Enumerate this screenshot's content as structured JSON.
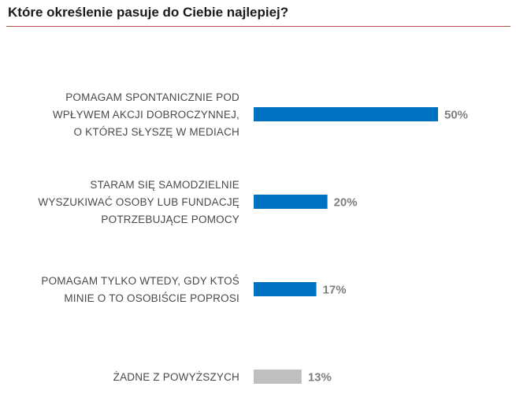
{
  "chart_data": {
    "type": "bar",
    "orientation": "horizontal",
    "title": "Które określenie pasuje do Ciebie najlepiej?",
    "categories": [
      [
        "POMAGAM SPONTANICZNIE POD",
        "WPŁYWEM AKCJI DOBROCZYNNEJ,",
        "O KTÓREJ SŁYSZĘ W MEDIACH"
      ],
      [
        "STARAM SIĘ SAMODZIELNIE",
        "WYSZUKIWAĆ OSOBY LUB FUNDACJĘ",
        "POTRZEBUJĄCE POMOCY"
      ],
      [
        "POMAGAM TYLKO WTEDY, GDY KTOŚ",
        "MINIE O TO OSOBIŚCIE POPROSI"
      ],
      [
        "ŻADNE Z POWYŻSZYCH"
      ]
    ],
    "values": [
      50,
      20,
      17,
      13
    ],
    "value_labels": [
      "50%",
      "20%",
      "17%",
      "13%"
    ],
    "colors": [
      "#0070c0",
      "#0070c0",
      "#0070c0",
      "#bfbfbf"
    ],
    "xlim": [
      0,
      50
    ],
    "grid": false,
    "legend": "none"
  }
}
